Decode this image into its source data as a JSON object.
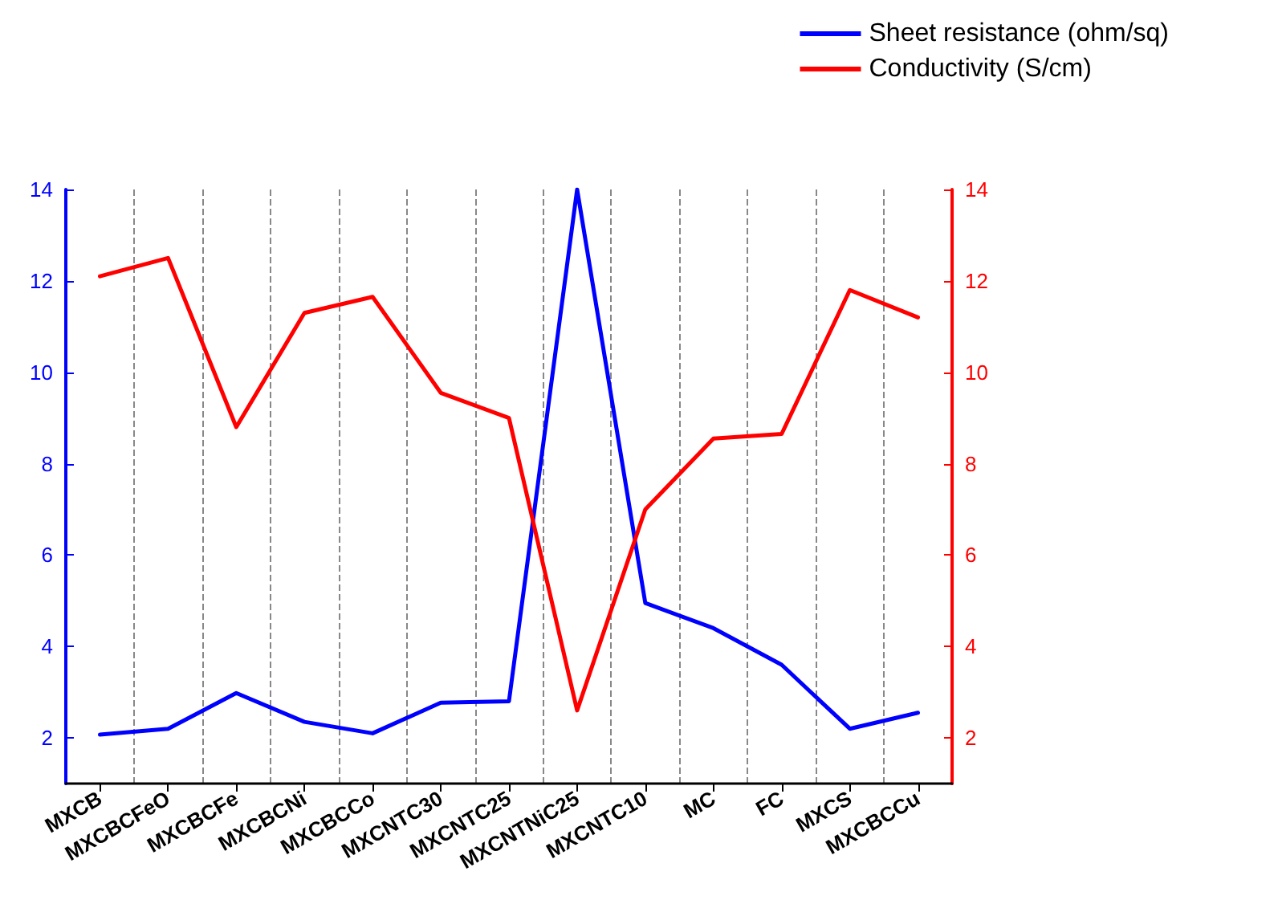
{
  "chart_data": {
    "type": "line",
    "categories": [
      "MXCB",
      "MXCBCFeO",
      "MXCBCFe",
      "MXCBCNi",
      "MXCBCCo",
      "MXCNTC30",
      "MXCNTC25",
      "MXCNTNiC25",
      "MXCNTC10",
      "MC",
      "FC",
      "MXCS",
      "MXCBCCu"
    ],
    "series": [
      {
        "name": "Sheet resistance (ohm/sq)",
        "color": "#0000ff",
        "values": [
          2.07,
          2.2,
          2.98,
          2.35,
          2.1,
          2.77,
          2.8,
          14.0,
          4.95,
          4.4,
          3.6,
          2.2,
          2.55
        ]
      },
      {
        "name": "Conductivity (S/cm)",
        "color": "#ff0000",
        "axis": "y2",
        "values": [
          12.1,
          12.5,
          8.8,
          11.3,
          11.65,
          9.55,
          9.0,
          2.6,
          7.0,
          8.55,
          8.65,
          11.8,
          11.2
        ]
      }
    ],
    "ylim": [
      1,
      14
    ],
    "yticks": [
      2,
      4,
      6,
      8,
      10,
      12,
      14
    ],
    "y2lim": [
      1,
      14
    ],
    "y2ticks": [
      2,
      4,
      6,
      8,
      10,
      12,
      14
    ],
    "grid": "x",
    "legend": "top right",
    "marker": "none",
    "line_style": "solid"
  }
}
